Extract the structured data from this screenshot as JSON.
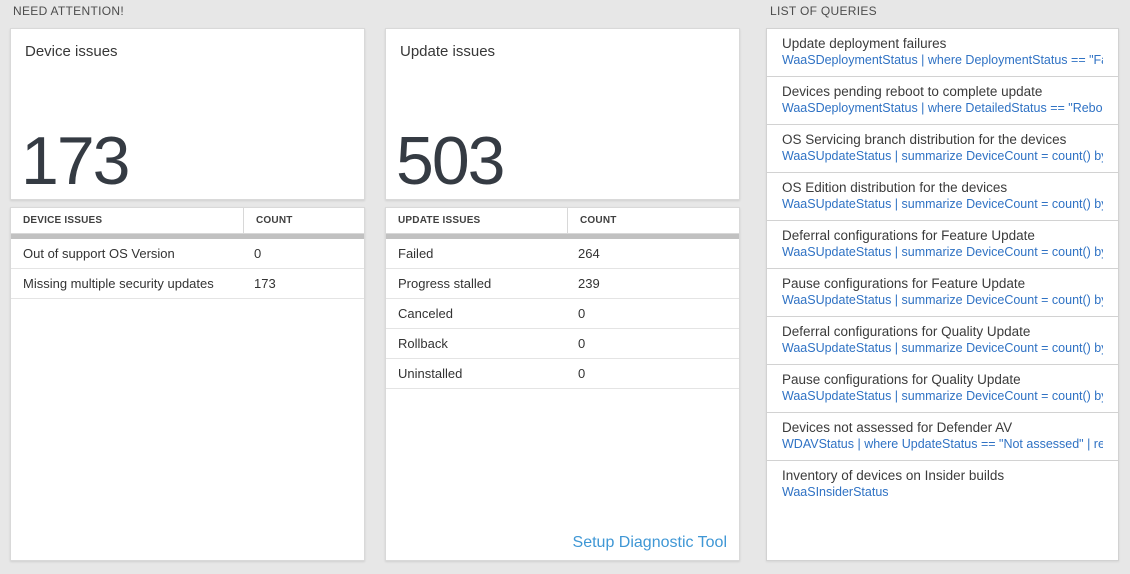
{
  "sections": {
    "need_attention": {
      "label": "NEED ATTENTION!"
    },
    "list_of_queries": {
      "label": "LIST OF QUERIES"
    }
  },
  "device_card": {
    "title": "Device issues",
    "count": "173"
  },
  "device_table": {
    "headers": {
      "col1": "DEVICE ISSUES",
      "col2": "COUNT"
    },
    "rows": [
      {
        "label": "Out of support OS Version",
        "count": "0"
      },
      {
        "label": "Missing multiple security updates",
        "count": "173"
      }
    ]
  },
  "update_card": {
    "title": "Update issues",
    "count": "503"
  },
  "update_table": {
    "headers": {
      "col1": "UPDATE ISSUES",
      "col2": "COUNT"
    },
    "rows": [
      {
        "label": "Failed",
        "count": "264"
      },
      {
        "label": "Progress stalled",
        "count": "239"
      },
      {
        "label": "Canceled",
        "count": "0"
      },
      {
        "label": "Rollback",
        "count": "0"
      },
      {
        "label": "Uninstalled",
        "count": "0"
      }
    ],
    "footer_link": "Setup Diagnostic Tool"
  },
  "queries": {
    "items": [
      {
        "title": "Update deployment failures",
        "query": "WaaSDeploymentStatus | where DeploymentStatus == \"Failed\" |..."
      },
      {
        "title": "Devices pending reboot to complete update",
        "query": "WaaSDeploymentStatus | where DetailedStatus == \"Reboot pend..."
      },
      {
        "title": "OS Servicing branch distribution for the devices",
        "query": "WaaSUpdateStatus | summarize DeviceCount = count() by OSSer..."
      },
      {
        "title": "OS Edition distribution for the devices",
        "query": "WaaSUpdateStatus | summarize DeviceCount = count() by OSEdit..."
      },
      {
        "title": "Deferral configurations for Feature Update",
        "query": "WaaSUpdateStatus | summarize DeviceCount = count() by Featur..."
      },
      {
        "title": "Pause configurations for Feature Update",
        "query": "WaaSUpdateStatus | summarize DeviceCount = count() by Featur..."
      },
      {
        "title": "Deferral configurations for Quality Update",
        "query": "WaaSUpdateStatus | summarize DeviceCount = count() by Qualit..."
      },
      {
        "title": "Pause configurations for Quality Update",
        "query": "WaaSUpdateStatus | summarize DeviceCount = count() by Qualit..."
      },
      {
        "title": "Devices not assessed for Defender AV",
        "query": "WDAVStatus | where UpdateStatus == \"Not assessed\" | render ta..."
      },
      {
        "title": "Inventory of devices on Insider builds",
        "query": "WaaSInsiderStatus"
      }
    ]
  },
  "colors": {
    "query_link_blue": "#2f72c4",
    "setup_link_blue": "#3f97d5",
    "big_number": "#353b43",
    "page_background": "#e7e7e7",
    "header_bar_gray": "#c1c1c1"
  }
}
